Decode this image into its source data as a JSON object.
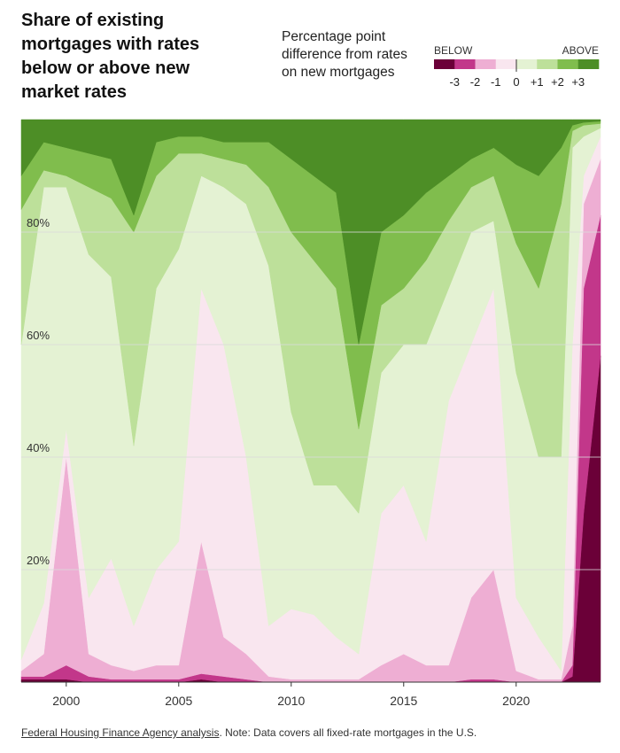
{
  "chart_data": {
    "type": "stacked_area",
    "title": "Share of existing mortgages with rates below or above new market rates",
    "subtitle": "Percentage point difference from rates on new mortgages",
    "legend": {
      "below": "BELOW",
      "above": "ABOVE",
      "labels": [
        "-3",
        "-2",
        "-1",
        "0",
        "+1",
        "+2",
        "+3"
      ]
    },
    "source": "Federal Housing Finance Agency analysis",
    "note": ". Note: Data covers all fixed-rate mortgages in the U.S.",
    "x": [
      1998,
      1999,
      2000,
      2001,
      2002,
      2003,
      2004,
      2005,
      2006,
      2007,
      2008,
      2009,
      2010,
      2011,
      2012,
      2013,
      2014,
      2015,
      2016,
      2017,
      2018,
      2019,
      2020,
      2021,
      2022,
      2022.5,
      2023,
      2023.75
    ],
    "xlim": [
      1998,
      2023.75
    ],
    "xticks": [
      2000,
      2005,
      2010,
      2015,
      2020
    ],
    "ylim": [
      0,
      100
    ],
    "yticks": [
      {
        "value": 20,
        "label": "20%"
      },
      {
        "value": 40,
        "label": "40%"
      },
      {
        "value": 60,
        "label": "60%"
      },
      {
        "value": 80,
        "label": "80%"
      }
    ],
    "grid": true,
    "series": [
      {
        "color": "#6b0038",
        "values": [
          0.5,
          0.5,
          0.5,
          0,
          0,
          0,
          0,
          0,
          0.5,
          0,
          0,
          0,
          0,
          0,
          0,
          0,
          0,
          0,
          0,
          0,
          0,
          0,
          0,
          0,
          0,
          1,
          30,
          58
        ]
      },
      {
        "color": "#c2378a",
        "values": [
          0.5,
          0.5,
          2.5,
          1,
          0.5,
          0.5,
          0.5,
          0.5,
          1,
          1,
          0.5,
          0,
          0,
          0,
          0,
          0,
          0,
          0,
          0,
          0,
          0.5,
          0.5,
          0,
          0,
          0,
          2,
          40,
          25
        ]
      },
      {
        "color": "#eeaed3",
        "values": [
          1,
          4,
          37,
          4,
          2.5,
          1.5,
          2.5,
          2.5,
          23.5,
          7,
          4.5,
          1,
          0.5,
          0.5,
          0.5,
          0.5,
          3,
          5,
          3,
          3,
          14.5,
          19.5,
          2,
          0.5,
          0.5,
          7,
          15,
          10
        ]
      },
      {
        "color": "#f9e6ef",
        "values": [
          2,
          9,
          5,
          10,
          19,
          8,
          17,
          22,
          45,
          52,
          35,
          9,
          12.5,
          11.5,
          7.5,
          4.5,
          27,
          30,
          22,
          47,
          45,
          50,
          13,
          7.5,
          1.5,
          50,
          5,
          4
        ]
      },
      {
        "color": "#e4f2d3",
        "values": [
          56,
          74,
          43,
          61,
          50,
          32,
          50,
          52,
          20,
          28,
          45,
          64,
          35,
          23,
          27,
          25,
          25,
          25,
          35,
          20,
          20,
          12,
          40,
          32,
          38,
          35,
          7,
          1.5
        ]
      },
      {
        "color": "#bde09a",
        "values": [
          24,
          3,
          2,
          12,
          14,
          38,
          20,
          17,
          4,
          5,
          7,
          14,
          32,
          40,
          35,
          15,
          12,
          10,
          15,
          12,
          8,
          8,
          23,
          30,
          45,
          3,
          2,
          0.8
        ]
      },
      {
        "color": "#80bd4d",
        "values": [
          6,
          5,
          5,
          6,
          7,
          3,
          6,
          3,
          3,
          3,
          4,
          8,
          13,
          15,
          17,
          15,
          13,
          13,
          12,
          8,
          5,
          5,
          14,
          20,
          10,
          1,
          0.5,
          0.4
        ]
      },
      {
        "color": "#4d8e26",
        "values": [
          10,
          4,
          5,
          6,
          7,
          17,
          4,
          3,
          3,
          4,
          4,
          4,
          7,
          10,
          13,
          40,
          20,
          17,
          13,
          10,
          7,
          5,
          8,
          10,
          5,
          1,
          0.5,
          0.3
        ]
      }
    ]
  }
}
